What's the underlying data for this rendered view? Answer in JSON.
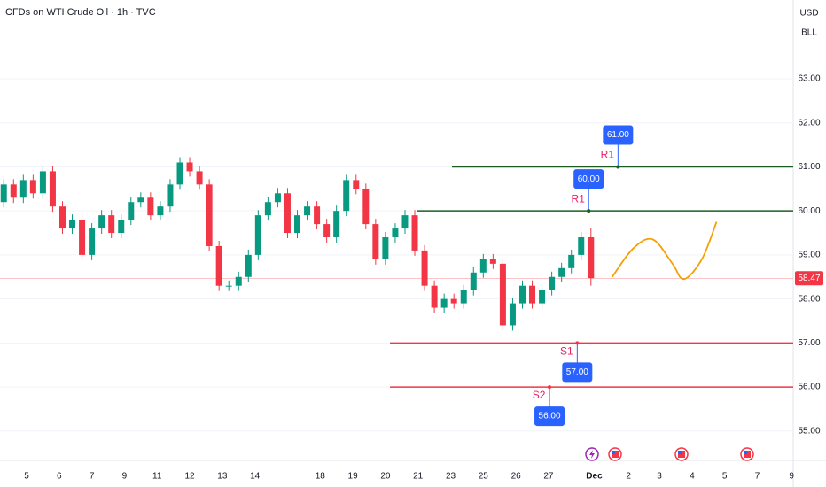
{
  "chart_data": {
    "type": "candlestick",
    "title": "CFDs on WTI Crude Oil · 1h · TVC",
    "currency": "USD",
    "unit": "BLL",
    "grid": true,
    "xlim": [
      -0.815,
      23.5
    ],
    "ylim": [
      53.97,
      64.79
    ],
    "xticks": [
      {
        "value": 0,
        "label": "5"
      },
      {
        "value": 1,
        "label": "6"
      },
      {
        "value": 2,
        "label": "7"
      },
      {
        "value": 3,
        "label": "9"
      },
      {
        "value": 4,
        "label": "11"
      },
      {
        "value": 5,
        "label": "12"
      },
      {
        "value": 6,
        "label": "13"
      },
      {
        "value": 7,
        "label": "14"
      },
      {
        "value": 9,
        "label": "18"
      },
      {
        "value": 10,
        "label": "19"
      },
      {
        "value": 11,
        "label": "20"
      },
      {
        "value": 12,
        "label": "21"
      },
      {
        "value": 13,
        "label": "23"
      },
      {
        "value": 14,
        "label": "25"
      },
      {
        "value": 15,
        "label": "26"
      },
      {
        "value": 16,
        "label": "27"
      },
      {
        "value": 17.4,
        "label": "Dec"
      },
      {
        "value": 18.45,
        "label": "2"
      },
      {
        "value": 19.4,
        "label": "3"
      },
      {
        "value": 20.4,
        "label": "4"
      },
      {
        "value": 21.4,
        "label": "5"
      },
      {
        "value": 22.4,
        "label": "7"
      },
      {
        "value": 23.45,
        "label": "9"
      }
    ],
    "yticks": [
      {
        "value": 55,
        "label": "55.00"
      },
      {
        "value": 56,
        "label": "56.00"
      },
      {
        "value": 57,
        "label": "57.00"
      },
      {
        "value": 58,
        "label": "58.00"
      },
      {
        "value": 59,
        "label": "59.00"
      },
      {
        "value": 60,
        "label": "60.00"
      },
      {
        "value": 61,
        "label": "61.00"
      },
      {
        "value": 62,
        "label": "62.00"
      },
      {
        "value": 63,
        "label": "63.00"
      }
    ],
    "up_color": "#089981",
    "down_color": "#f23645",
    "candles": {
      "x": [
        -0.7,
        -0.4,
        -0.1,
        0.2,
        0.5,
        0.8,
        1.1,
        1.4,
        1.7,
        2.0,
        2.3,
        2.6,
        2.9,
        3.2,
        3.5,
        3.8,
        4.1,
        4.4,
        4.7,
        5.0,
        5.3,
        5.6,
        5.9,
        6.2,
        6.5,
        6.8,
        7.1,
        7.4,
        7.7,
        8.0,
        8.3,
        8.6,
        8.9,
        9.2,
        9.5,
        9.8,
        10.1,
        10.4,
        10.7,
        11.0,
        11.3,
        11.6,
        11.9,
        12.2,
        12.5,
        12.8,
        13.1,
        13.4,
        13.7,
        14.0,
        14.3,
        14.6,
        14.9,
        15.2,
        15.5,
        15.8,
        16.1,
        16.4,
        16.7,
        17.0,
        17.3
      ],
      "open": [
        60.2,
        60.6,
        60.3,
        60.7,
        60.4,
        60.9,
        60.1,
        59.6,
        59.8,
        59.0,
        59.6,
        59.9,
        59.5,
        59.8,
        60.2,
        60.3,
        59.9,
        60.1,
        60.6,
        61.1,
        60.9,
        60.6,
        59.2,
        58.3,
        58.3,
        58.5,
        59.0,
        59.9,
        60.2,
        60.4,
        59.5,
        59.9,
        60.1,
        59.7,
        59.4,
        60.0,
        60.7,
        60.5,
        59.7,
        58.9,
        59.4,
        59.6,
        59.9,
        59.1,
        58.3,
        57.8,
        58.0,
        57.9,
        58.2,
        58.6,
        58.9,
        58.8,
        57.4,
        57.9,
        58.3,
        57.9,
        58.2,
        58.5,
        58.7,
        59.0,
        59.4
      ],
      "high": [
        60.72,
        60.72,
        60.82,
        60.82,
        61.02,
        61.02,
        60.22,
        59.92,
        59.92,
        59.72,
        60.02,
        60.02,
        59.92,
        60.32,
        60.42,
        60.42,
        60.22,
        60.72,
        61.22,
        61.22,
        61.02,
        60.72,
        59.32,
        58.42,
        58.62,
        59.12,
        60.02,
        60.32,
        60.52,
        60.52,
        60.02,
        60.22,
        60.22,
        59.82,
        60.12,
        60.82,
        60.82,
        60.62,
        59.82,
        59.52,
        59.72,
        60.02,
        60.02,
        59.22,
        58.42,
        58.12,
        58.12,
        58.32,
        58.72,
        59.02,
        59.02,
        58.92,
        58.02,
        58.42,
        58.42,
        58.32,
        58.62,
        58.82,
        59.12,
        59.52,
        59.62
      ],
      "low": [
        60.08,
        60.18,
        60.18,
        60.28,
        60.28,
        59.98,
        59.48,
        59.48,
        58.88,
        58.88,
        59.48,
        59.38,
        59.38,
        59.68,
        60.08,
        59.78,
        59.78,
        59.98,
        60.48,
        60.78,
        60.48,
        59.08,
        58.18,
        58.18,
        58.18,
        58.38,
        58.88,
        59.78,
        60.08,
        59.38,
        59.38,
        59.78,
        59.58,
        59.28,
        59.28,
        59.88,
        60.38,
        59.58,
        58.78,
        58.78,
        59.28,
        59.48,
        58.98,
        58.18,
        57.68,
        57.68,
        57.78,
        57.78,
        58.08,
        58.48,
        58.68,
        57.28,
        57.28,
        57.78,
        57.78,
        57.78,
        58.08,
        58.38,
        58.58,
        58.88,
        58.3
      ],
      "close": [
        60.6,
        60.3,
        60.7,
        60.4,
        60.9,
        60.1,
        59.6,
        59.8,
        59.0,
        59.6,
        59.9,
        59.5,
        59.8,
        60.2,
        60.3,
        59.9,
        60.1,
        60.6,
        61.1,
        60.9,
        60.6,
        59.2,
        58.3,
        58.3,
        58.5,
        59.0,
        59.9,
        60.2,
        60.4,
        59.5,
        59.9,
        60.1,
        59.7,
        59.4,
        60.0,
        60.7,
        60.5,
        59.7,
        58.9,
        59.4,
        59.6,
        59.9,
        59.1,
        58.3,
        57.8,
        58.0,
        57.9,
        58.2,
        58.6,
        58.9,
        58.8,
        57.4,
        57.9,
        58.3,
        57.9,
        58.2,
        58.5,
        58.7,
        59.0,
        59.4,
        58.47
      ]
    },
    "current_price": {
      "value": 58.47,
      "value_label": "58.47",
      "color": "#f23645"
    },
    "levels": [
      {
        "name": "R1",
        "value": 61,
        "value_label": "61.00",
        "x_start": 13.04,
        "x_anchor": 18.13,
        "color": "#1b5e20"
      },
      {
        "name": "R1",
        "value": 60,
        "value_label": "60.00",
        "x_start": 11.98,
        "x_anchor": 17.23,
        "color": "#1b5e20"
      },
      {
        "name": "S1",
        "value": 57,
        "value_label": "57.00",
        "x_start": 11.14,
        "x_anchor": 16.88,
        "color": "#f23645"
      },
      {
        "name": "S2",
        "value": 56,
        "value_label": "56.00",
        "x_start": 11.14,
        "x_anchor": 16.03,
        "color": "#f23645"
      }
    ],
    "projection": {
      "color": "#f5a000",
      "x": [
        17.95,
        18.6,
        19.2,
        19.8,
        20.15,
        20.7,
        21.15
      ],
      "values": [
        58.5,
        59.15,
        59.35,
        58.8,
        58.45,
        58.9,
        59.75
      ]
    }
  }
}
